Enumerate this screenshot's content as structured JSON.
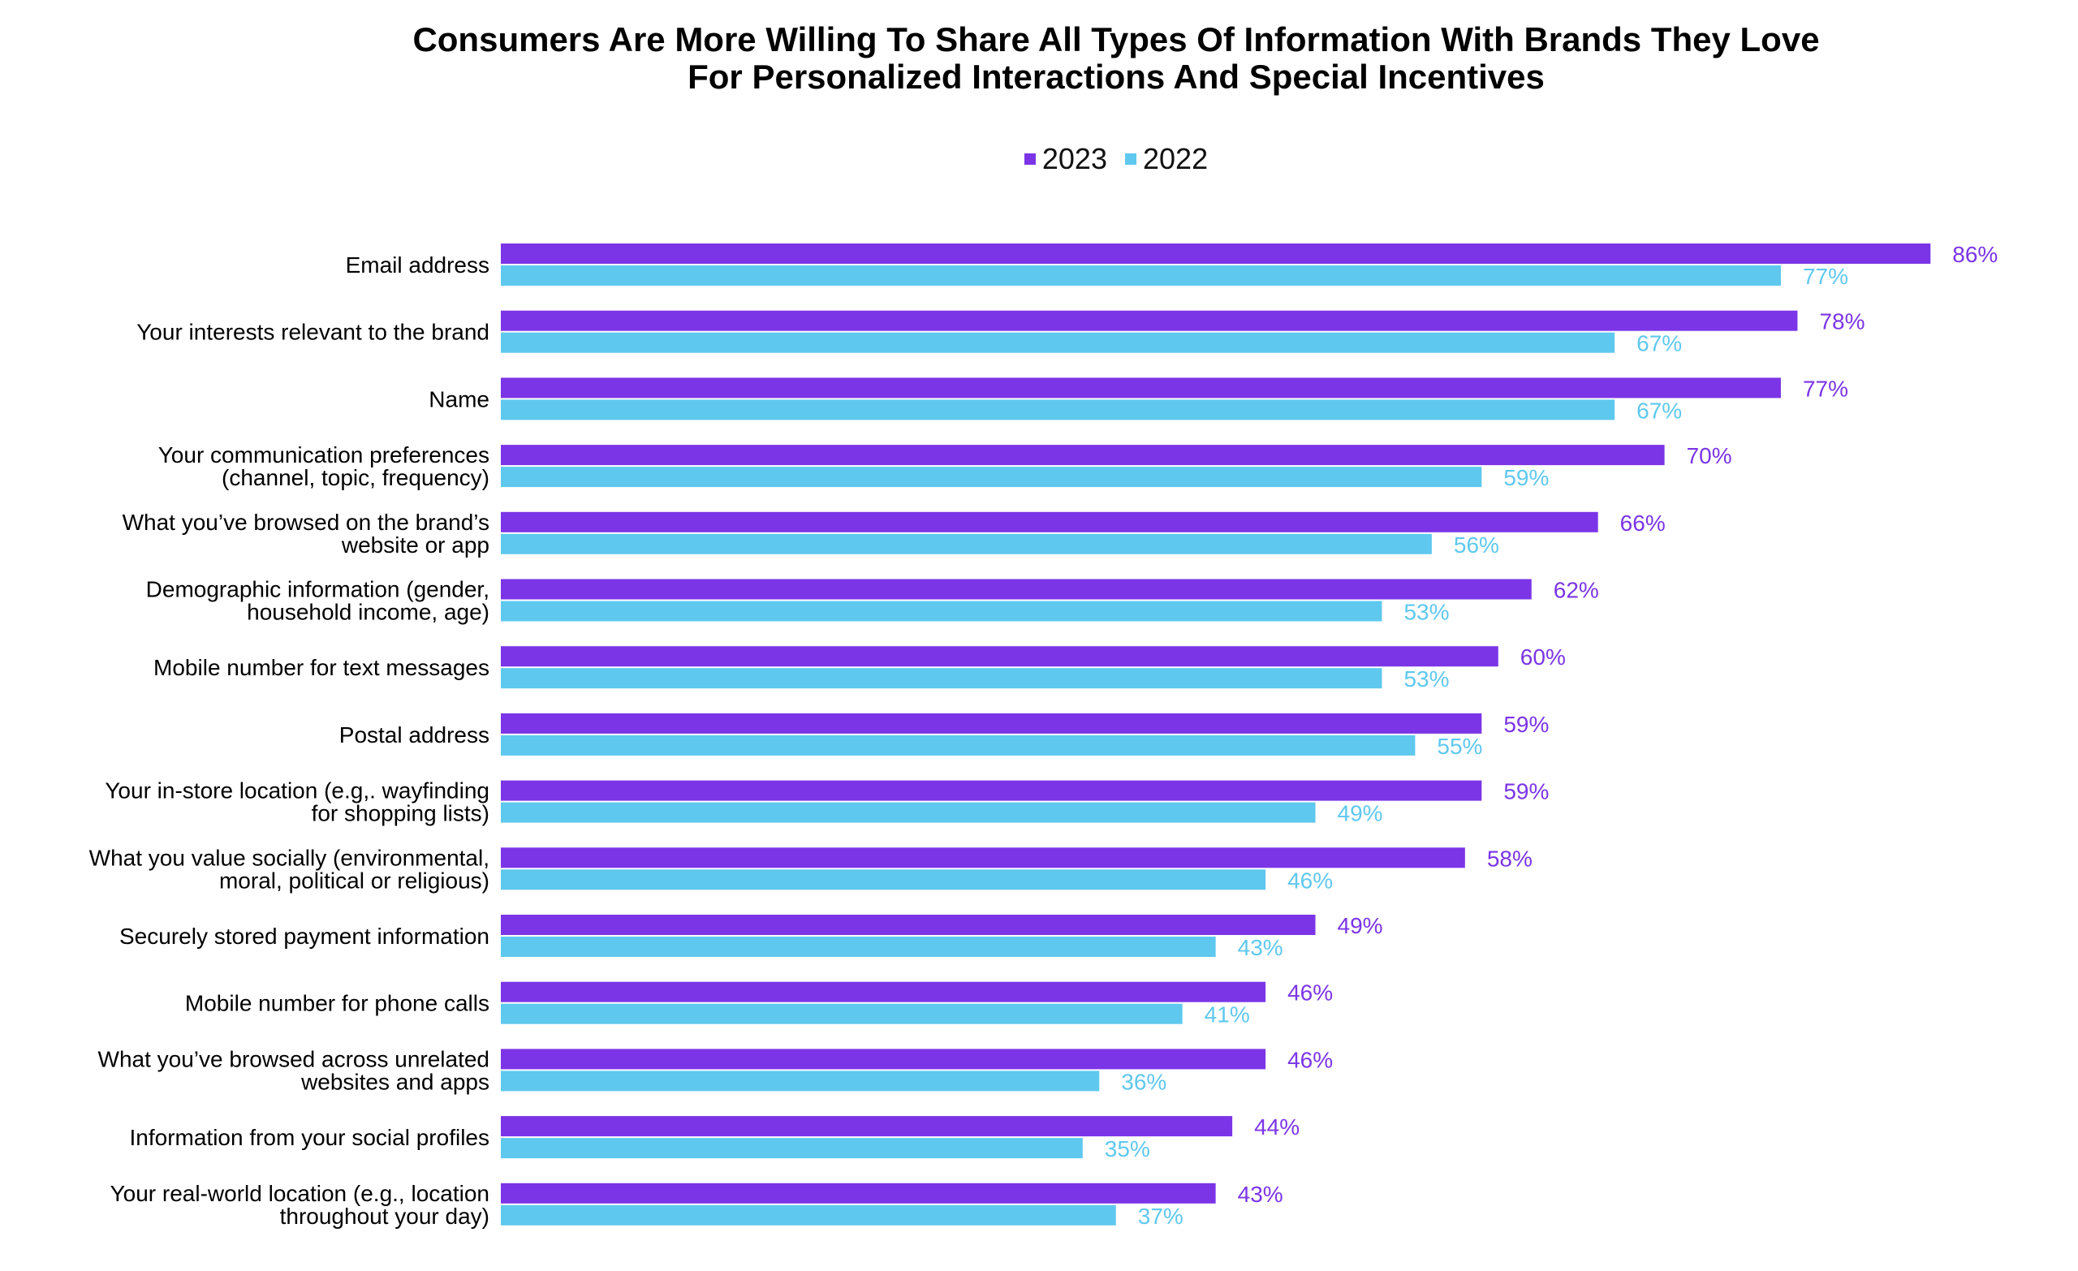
{
  "chart_data": {
    "type": "bar",
    "orientation": "horizontal",
    "title": "Consumers Are More Willing To Share All Types Of Information With Brands They Love For Personalized Interactions And Special Incentives",
    "title_lines": [
      "Consumers Are More Willing To Share All Types Of Information With Brands They Love",
      "For Personalized Interactions And Special Incentives"
    ],
    "legend_placement": "top",
    "grid": false,
    "xlim": [
      0,
      100
    ],
    "categories": [
      [
        "Email address"
      ],
      [
        "Your interests relevant to the brand"
      ],
      [
        "Name"
      ],
      [
        "Your communication preferences",
        "(channel, topic, frequency)"
      ],
      [
        "What you’ve browsed on the brand’s",
        "website or app"
      ],
      [
        "Demographic information (gender,",
        "household income, age)"
      ],
      [
        "Mobile number for text messages"
      ],
      [
        "Postal address"
      ],
      [
        "Your in-store location (e.g,. wayfinding",
        "for shopping lists)"
      ],
      [
        "What you value socially (environmental,",
        "moral, political or religious)"
      ],
      [
        "Securely stored payment information"
      ],
      [
        "Mobile number for phone calls"
      ],
      [
        "What you’ve browsed across unrelated",
        "websites and apps"
      ],
      [
        "Information from your social profiles"
      ],
      [
        "Your real-world location (e.g., location",
        "throughout your day)"
      ]
    ],
    "series": [
      {
        "name": "2023",
        "color": "#7B35E6",
        "values": [
          86,
          78,
          77,
          70,
          66,
          62,
          60,
          59,
          59,
          58,
          49,
          46,
          46,
          44,
          43
        ]
      },
      {
        "name": "2022",
        "color": "#5FC8EE",
        "values": [
          77,
          67,
          67,
          59,
          56,
          53,
          53,
          55,
          49,
          46,
          43,
          41,
          36,
          35,
          37
        ]
      }
    ],
    "value_suffix": "%"
  }
}
